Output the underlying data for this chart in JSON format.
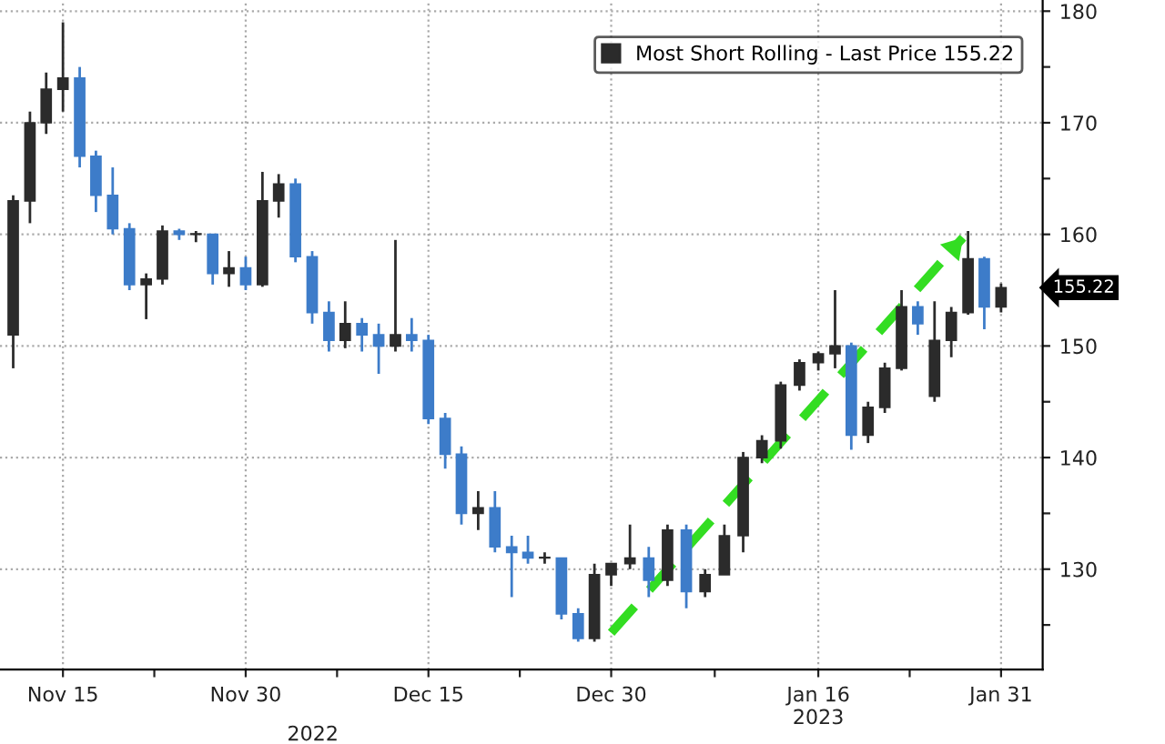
{
  "chart_data": {
    "type": "candlestick",
    "x": [
      "2022-11-10T22:00",
      "2022-11-12T07:00",
      "2022-11-13T15:00",
      "2022-11-15T00:00",
      "2022-11-16T09:00",
      "2022-11-17T17:00",
      "2022-11-19T02:00",
      "2022-11-20T11:00",
      "2022-11-21T20:00",
      "2022-11-23T04:00",
      "2022-11-24T13:00",
      "2022-11-25T22:00",
      "2022-11-27T07:00",
      "2022-11-28T15:00",
      "2022-11-30T00:00",
      "2022-12-01T09:00",
      "2022-12-02T17:00",
      "2022-12-04T02:00",
      "2022-12-05T11:00",
      "2022-12-06T20:00",
      "2022-12-08T04:00",
      "2022-12-09T13:00",
      "2022-12-10T22:00",
      "2022-12-12T07:00",
      "2022-12-13T15:00",
      "2022-12-15T00:00",
      "2022-12-16T09:00",
      "2022-12-17T17:00",
      "2022-12-19T02:00",
      "2022-12-20T11:00",
      "2022-12-21T20:00",
      "2022-12-23T04:00",
      "2022-12-24T13:00",
      "2022-12-25T22:00",
      "2022-12-27T07:00",
      "2022-12-28T15:00",
      "2022-12-30T00:00",
      "2022-12-31T13:00",
      "2023-01-02T02:00",
      "2023-01-03T15:00",
      "2023-01-05T04:00",
      "2023-01-06T17:00",
      "2023-01-08T07:00",
      "2023-01-09T20:00",
      "2023-01-11T09:00",
      "2023-01-12T22:00",
      "2023-01-14T11:00",
      "2023-01-16T00:00",
      "2023-01-17T09:00",
      "2023-01-18T17:00",
      "2023-01-20T02:00",
      "2023-01-21T11:00",
      "2023-01-22T20:00",
      "2023-01-24T04:00",
      "2023-01-25T13:00",
      "2023-01-26T22:00",
      "2023-01-28T07:00",
      "2023-01-29T15:00",
      "2023-01-31T00:00"
    ],
    "series": [
      {
        "name": "Most Short Rolling - Last Price 155.22",
        "color": "#2b2b2b",
        "ohlc": [
          [
            151,
            163.5,
            148,
            163
          ],
          [
            163,
            171,
            161,
            170
          ],
          [
            170,
            174.5,
            169,
            173
          ],
          [
            173,
            179,
            171,
            174
          ],
          [
            174,
            175,
            166,
            167
          ],
          [
            167,
            167.5,
            162,
            163.5
          ],
          [
            163.5,
            166,
            160,
            160.5
          ],
          [
            160.5,
            161,
            155,
            155.5
          ],
          [
            155.5,
            156.5,
            152.4,
            156
          ],
          [
            156,
            160.8,
            155.5,
            160.3
          ],
          [
            160.3,
            160.5,
            159.5,
            160
          ],
          [
            160,
            160.3,
            159.3,
            160
          ],
          [
            160,
            160,
            155.5,
            156.5
          ],
          [
            156.5,
            158.5,
            155.3,
            157
          ],
          [
            157,
            158,
            155,
            155.5
          ],
          [
            155.5,
            165.6,
            155.3,
            163
          ],
          [
            163,
            165.4,
            161.5,
            164.5
          ],
          [
            164.5,
            165,
            157.5,
            158
          ],
          [
            158,
            158.5,
            152,
            153
          ],
          [
            153,
            154,
            149.5,
            150.5
          ],
          [
            150.5,
            154,
            149.8,
            152
          ],
          [
            152,
            152.5,
            149.5,
            151
          ],
          [
            151,
            152,
            147.5,
            150
          ],
          [
            150,
            159.5,
            149.5,
            151
          ],
          [
            151,
            152.5,
            149.5,
            150.5
          ],
          [
            150.5,
            151,
            143,
            143.5
          ],
          [
            143.5,
            144,
            139,
            140.3
          ],
          [
            140.3,
            141,
            134,
            135
          ],
          [
            135,
            137,
            133.5,
            135.5
          ],
          [
            135.5,
            137,
            131.5,
            132
          ],
          [
            132,
            133,
            127.5,
            131.5
          ],
          [
            131.5,
            133,
            130.5,
            131
          ],
          [
            131,
            131.5,
            130.5,
            131
          ],
          [
            131,
            131,
            125.5,
            126
          ],
          [
            126,
            126.5,
            123.5,
            123.8
          ],
          [
            123.8,
            130.5,
            123.5,
            129.5
          ],
          [
            129.5,
            130.5,
            128.5,
            130.5
          ],
          [
            130.5,
            134,
            130,
            131
          ],
          [
            131,
            132,
            127.5,
            129
          ],
          [
            129,
            134,
            128.5,
            133.5
          ],
          [
            133.5,
            134,
            126.5,
            128
          ],
          [
            128,
            130,
            127.5,
            129.5
          ],
          [
            129.5,
            134,
            129.5,
            133
          ],
          [
            133,
            140.5,
            131.5,
            140
          ],
          [
            140,
            142,
            139.5,
            141.5
          ],
          [
            141.5,
            146.8,
            140.8,
            146.5
          ],
          [
            146.5,
            148.8,
            146,
            148.5
          ],
          [
            148.5,
            149.5,
            147.8,
            149.3
          ],
          [
            149.3,
            155,
            148,
            150
          ],
          [
            150,
            150.3,
            140.7,
            142
          ],
          [
            142,
            145,
            141.3,
            144.5
          ],
          [
            144.5,
            148.5,
            144,
            148
          ],
          [
            148,
            155,
            147.8,
            153.5
          ],
          [
            153.5,
            154,
            151,
            152
          ],
          [
            145.5,
            154,
            145,
            150.5
          ],
          [
            150.5,
            153.5,
            149,
            153
          ],
          [
            153,
            160.3,
            152.8,
            157.8
          ],
          [
            157.8,
            158,
            151.5,
            153.5
          ],
          [
            153.5,
            155.6,
            153,
            155.22
          ]
        ],
        "colors": [
          "#2b2b2b",
          "#2b2b2b",
          "#2b2b2b",
          "#2b2b2b",
          "#3d7cc9",
          "#3d7cc9",
          "#3d7cc9",
          "#3d7cc9",
          "#2b2b2b",
          "#2b2b2b",
          "#3d7cc9",
          "#2b2b2b",
          "#3d7cc9",
          "#2b2b2b",
          "#3d7cc9",
          "#2b2b2b",
          "#2b2b2b",
          "#3d7cc9",
          "#3d7cc9",
          "#3d7cc9",
          "#2b2b2b",
          "#3d7cc9",
          "#3d7cc9",
          "#2b2b2b",
          "#3d7cc9",
          "#3d7cc9",
          "#3d7cc9",
          "#3d7cc9",
          "#2b2b2b",
          "#3d7cc9",
          "#3d7cc9",
          "#3d7cc9",
          "#2b2b2b",
          "#3d7cc9",
          "#3d7cc9",
          "#2b2b2b",
          "#2b2b2b",
          "#2b2b2b",
          "#3d7cc9",
          "#2b2b2b",
          "#3d7cc9",
          "#2b2b2b",
          "#2b2b2b",
          "#2b2b2b",
          "#2b2b2b",
          "#2b2b2b",
          "#2b2b2b",
          "#2b2b2b",
          "#2b2b2b",
          "#3d7cc9",
          "#2b2b2b",
          "#2b2b2b",
          "#2b2b2b",
          "#3d7cc9",
          "#2b2b2b",
          "#2b2b2b",
          "#2b2b2b",
          "#3d7cc9",
          "#2b2b2b"
        ]
      },
      {
        "type": "line",
        "x": [
          "2022-12-30T00:00",
          "2023-01-27T21:00"
        ],
        "values": [
          124.3,
          159.7
        ],
        "color": "#33dd22",
        "line_style": "dashed"
      }
    ],
    "xlim": [
      "2022-11-09T20:00",
      "2023-02-03T10:00"
    ],
    "xticks": [
      {
        "value": "2022-11-15",
        "label": "Nov 15"
      },
      {
        "value": "2022-11-22T12:00",
        "label": null
      },
      {
        "value": "2022-11-30",
        "label": "Nov 30"
      },
      {
        "value": "2022-12-07T12:00",
        "label": null
      },
      {
        "value": "2022-12-15",
        "label": "Dec 15"
      },
      {
        "value": "2022-12-22T12:00",
        "label": null
      },
      {
        "value": "2022-12-30",
        "label": "Dec 30"
      },
      {
        "value": "2023-01-07T12:00",
        "label": null
      },
      {
        "value": "2023-01-16",
        "label": "Jan 16\n2023"
      },
      {
        "value": "2023-01-23T12:00",
        "label": null
      },
      {
        "value": "2023-01-31",
        "label": "Jan 31"
      }
    ],
    "ylim": [
      121,
      181
    ],
    "yticks": [
      {
        "value": 125,
        "label": null
      },
      130,
      {
        "value": 135,
        "label": null
      },
      140,
      {
        "value": 145,
        "label": null
      },
      150,
      {
        "value": 155,
        "label": null
      },
      160,
      {
        "value": 165,
        "label": null
      },
      170,
      {
        "value": 175,
        "label": null
      },
      180
    ],
    "grid": true,
    "legend": "top right",
    "annotations": [
      "155.22",
      "2022"
    ]
  }
}
